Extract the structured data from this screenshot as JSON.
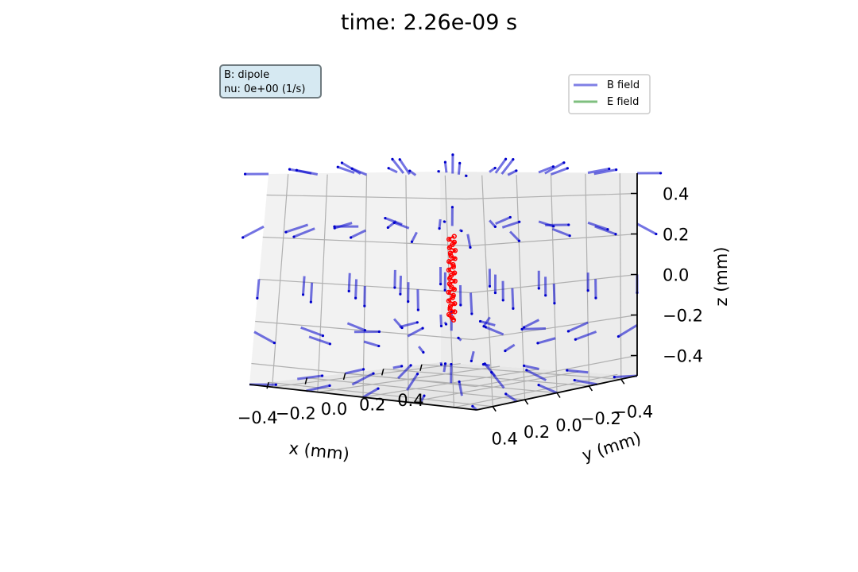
{
  "chart_data": {
    "type": "quiver3d",
    "title": "time: 2.26e-09 s",
    "xlabel": "x (mm)",
    "ylabel": "y (mm)",
    "zlabel": "z (mm)",
    "xlim": [
      -0.5,
      0.5
    ],
    "ylim": [
      -0.5,
      0.5
    ],
    "zlim": [
      -0.5,
      0.5
    ],
    "x_ticks": [
      0.4,
      0.2,
      0.0,
      -0.2,
      -0.4
    ],
    "x_tick_labels": [
      "0.4",
      "0.2",
      "0.0",
      "−0.2",
      "−0.4"
    ],
    "y_ticks": [
      0.4,
      0.2,
      0.0,
      -0.2,
      -0.4
    ],
    "y_tick_labels": [
      "0.4",
      "0.2",
      "0.0",
      "−0.2",
      "−0.4"
    ],
    "z_ticks": [
      0.4,
      0.2,
      0.0,
      -0.2,
      -0.4
    ],
    "z_tick_labels": [
      "0.4",
      "0.2",
      "0.0",
      "−0.2",
      "−0.4"
    ],
    "grid": true,
    "legend": {
      "placement": "upper-right",
      "entries": [
        {
          "label": "B field",
          "color": "#0000cc"
        },
        {
          "label": "E field",
          "color": "#008000"
        }
      ]
    },
    "info_box": {
      "lines": [
        "B: dipole",
        "nu: 0e+00 (1/s)"
      ],
      "placement": "upper-left"
    },
    "field": {
      "name": "B field",
      "model": "dipole",
      "color": "#0000cc",
      "grid_axis_values": [
        -0.5,
        -0.25,
        0.0,
        0.25,
        0.5
      ]
    },
    "trajectory": {
      "color": "#ff0000",
      "x_center": 0.0,
      "y_center": 0.0,
      "z_range": [
        -0.2,
        0.2
      ]
    }
  }
}
